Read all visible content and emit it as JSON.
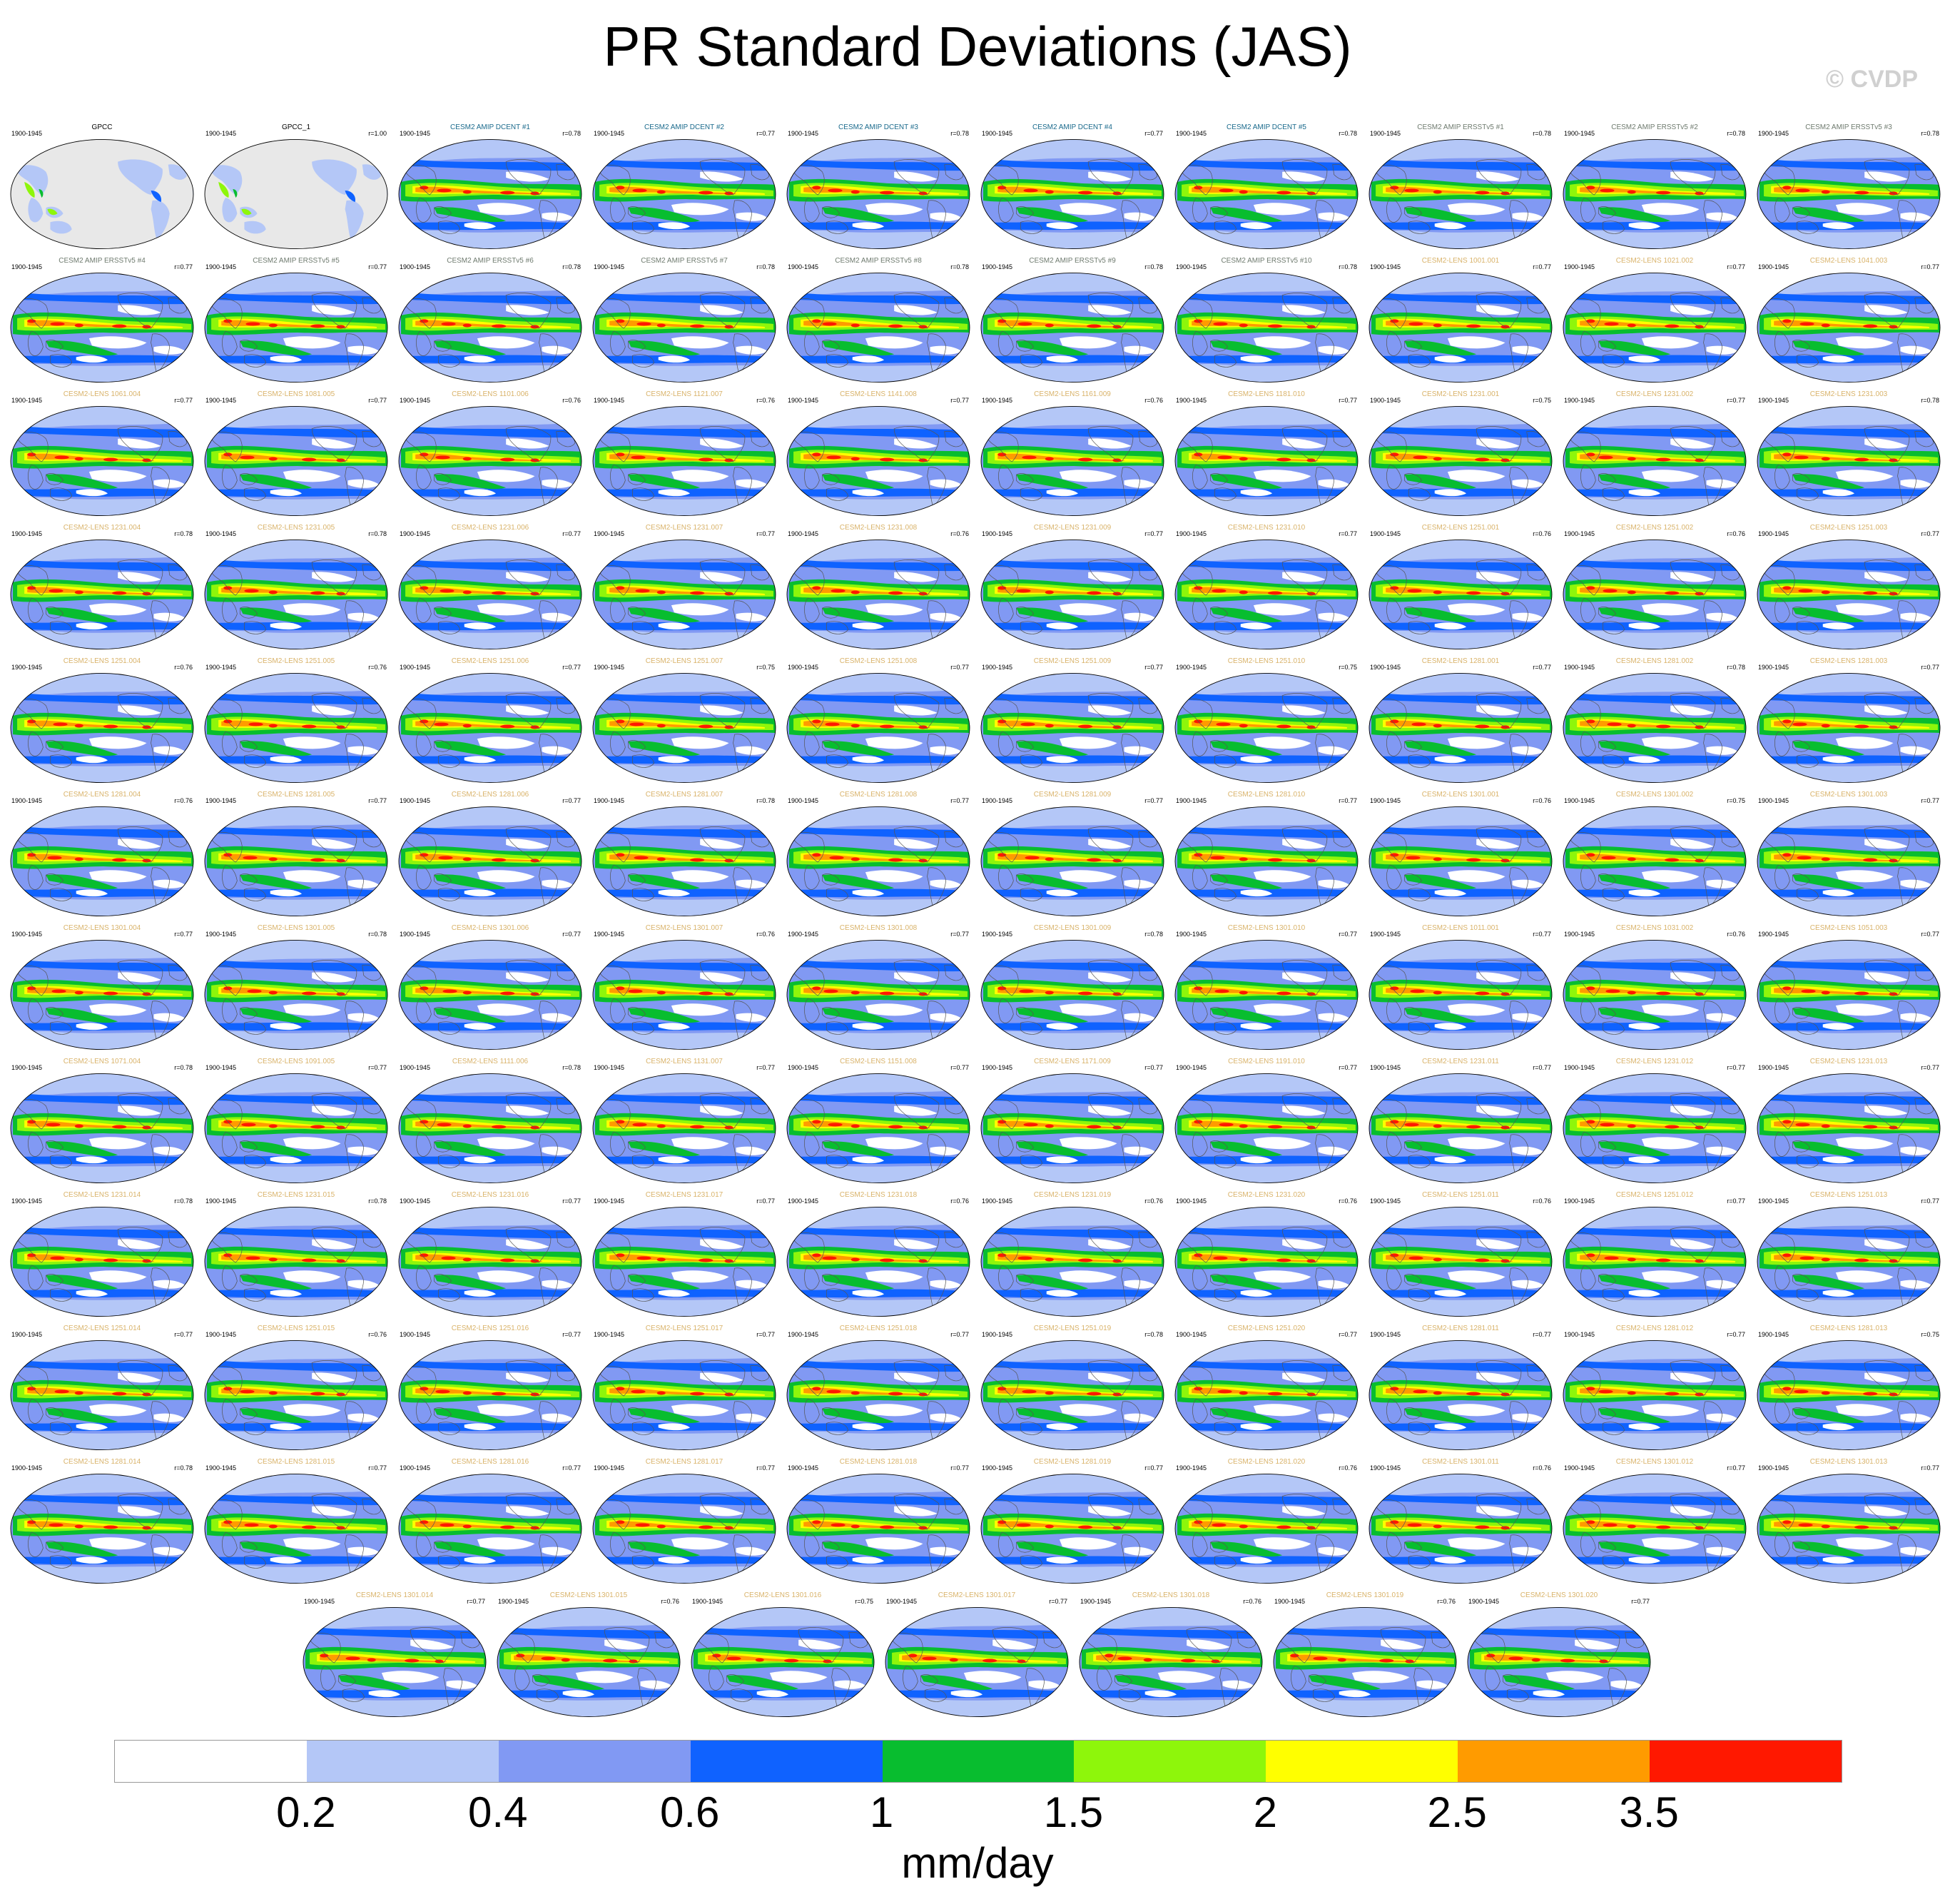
{
  "title": "PR Standard Deviations (JAS)",
  "copyright": "© CVDP",
  "period": "1900-1945",
  "colors": {
    "obs_title": "#000000",
    "amip_dcent_title": "#1a6a8c",
    "amip_ersst_title": "#6e7a6e",
    "lens_title": "#d9b36a",
    "land": "#e8e8e8",
    "coast": "#555555"
  },
  "panels": [
    {
      "title": "GPCC",
      "r": "",
      "kind": "obs"
    },
    {
      "title": "GPCC_1",
      "r": "r=1.00",
      "kind": "obs"
    },
    {
      "title": "CESM2 AMIP DCENT #1",
      "r": "r=0.78",
      "kind": "dcent"
    },
    {
      "title": "CESM2 AMIP DCENT #2",
      "r": "r=0.77",
      "kind": "dcent"
    },
    {
      "title": "CESM2 AMIP DCENT #3",
      "r": "r=0.78",
      "kind": "dcent"
    },
    {
      "title": "CESM2 AMIP DCENT #4",
      "r": "r=0.77",
      "kind": "dcent"
    },
    {
      "title": "CESM2 AMIP DCENT #5",
      "r": "r=0.78",
      "kind": "dcent"
    },
    {
      "title": "CESM2 AMIP ERSSTv5 #1",
      "r": "r=0.78",
      "kind": "ersst"
    },
    {
      "title": "CESM2 AMIP ERSSTv5 #2",
      "r": "r=0.78",
      "kind": "ersst"
    },
    {
      "title": "CESM2 AMIP ERSSTv5 #3",
      "r": "r=0.78",
      "kind": "ersst"
    },
    {
      "title": "CESM2 AMIP ERSSTv5 #4",
      "r": "r=0.77",
      "kind": "ersst"
    },
    {
      "title": "CESM2 AMIP ERSSTv5 #5",
      "r": "r=0.77",
      "kind": "ersst"
    },
    {
      "title": "CESM2 AMIP ERSSTv5 #6",
      "r": "r=0.78",
      "kind": "ersst"
    },
    {
      "title": "CESM2 AMIP ERSSTv5 #7",
      "r": "r=0.78",
      "kind": "ersst"
    },
    {
      "title": "CESM2 AMIP ERSSTv5 #8",
      "r": "r=0.78",
      "kind": "ersst"
    },
    {
      "title": "CESM2 AMIP ERSSTv5 #9",
      "r": "r=0.78",
      "kind": "ersst"
    },
    {
      "title": "CESM2 AMIP ERSSTv5 #10",
      "r": "r=0.78",
      "kind": "ersst"
    },
    {
      "title": "CESM2-LENS 1001.001",
      "r": "r=0.77",
      "kind": "lens"
    },
    {
      "title": "CESM2-LENS 1021.002",
      "r": "r=0.77",
      "kind": "lens"
    },
    {
      "title": "CESM2-LENS 1041.003",
      "r": "r=0.77",
      "kind": "lens"
    },
    {
      "title": "CESM2-LENS 1061.004",
      "r": "r=0.77",
      "kind": "lens"
    },
    {
      "title": "CESM2-LENS 1081.005",
      "r": "r=0.77",
      "kind": "lens"
    },
    {
      "title": "CESM2-LENS 1101.006",
      "r": "r=0.76",
      "kind": "lens"
    },
    {
      "title": "CESM2-LENS 1121.007",
      "r": "r=0.76",
      "kind": "lens"
    },
    {
      "title": "CESM2-LENS 1141.008",
      "r": "r=0.77",
      "kind": "lens"
    },
    {
      "title": "CESM2-LENS 1161.009",
      "r": "r=0.76",
      "kind": "lens"
    },
    {
      "title": "CESM2-LENS 1181.010",
      "r": "r=0.77",
      "kind": "lens"
    },
    {
      "title": "CESM2-LENS 1231.001",
      "r": "r=0.75",
      "kind": "lens"
    },
    {
      "title": "CESM2-LENS 1231.002",
      "r": "r=0.77",
      "kind": "lens"
    },
    {
      "title": "CESM2-LENS 1231.003",
      "r": "r=0.78",
      "kind": "lens"
    },
    {
      "title": "CESM2-LENS 1231.004",
      "r": "r=0.78",
      "kind": "lens"
    },
    {
      "title": "CESM2-LENS 1231.005",
      "r": "r=0.78",
      "kind": "lens"
    },
    {
      "title": "CESM2-LENS 1231.006",
      "r": "r=0.77",
      "kind": "lens"
    },
    {
      "title": "CESM2-LENS 1231.007",
      "r": "r=0.77",
      "kind": "lens"
    },
    {
      "title": "CESM2-LENS 1231.008",
      "r": "r=0.76",
      "kind": "lens"
    },
    {
      "title": "CESM2-LENS 1231.009",
      "r": "r=0.77",
      "kind": "lens"
    },
    {
      "title": "CESM2-LENS 1231.010",
      "r": "r=0.77",
      "kind": "lens"
    },
    {
      "title": "CESM2-LENS 1251.001",
      "r": "r=0.76",
      "kind": "lens"
    },
    {
      "title": "CESM2-LENS 1251.002",
      "r": "r=0.76",
      "kind": "lens"
    },
    {
      "title": "CESM2-LENS 1251.003",
      "r": "r=0.77",
      "kind": "lens"
    },
    {
      "title": "CESM2-LENS 1251.004",
      "r": "r=0.76",
      "kind": "lens"
    },
    {
      "title": "CESM2-LENS 1251.005",
      "r": "r=0.76",
      "kind": "lens"
    },
    {
      "title": "CESM2-LENS 1251.006",
      "r": "r=0.77",
      "kind": "lens"
    },
    {
      "title": "CESM2-LENS 1251.007",
      "r": "r=0.75",
      "kind": "lens"
    },
    {
      "title": "CESM2-LENS 1251.008",
      "r": "r=0.77",
      "kind": "lens"
    },
    {
      "title": "CESM2-LENS 1251.009",
      "r": "r=0.77",
      "kind": "lens"
    },
    {
      "title": "CESM2-LENS 1251.010",
      "r": "r=0.75",
      "kind": "lens"
    },
    {
      "title": "CESM2-LENS 1281.001",
      "r": "r=0.77",
      "kind": "lens"
    },
    {
      "title": "CESM2-LENS 1281.002",
      "r": "r=0.78",
      "kind": "lens"
    },
    {
      "title": "CESM2-LENS 1281.003",
      "r": "r=0.77",
      "kind": "lens"
    },
    {
      "title": "CESM2-LENS 1281.004",
      "r": "r=0.76",
      "kind": "lens"
    },
    {
      "title": "CESM2-LENS 1281.005",
      "r": "r=0.77",
      "kind": "lens"
    },
    {
      "title": "CESM2-LENS 1281.006",
      "r": "r=0.77",
      "kind": "lens"
    },
    {
      "title": "CESM2-LENS 1281.007",
      "r": "r=0.78",
      "kind": "lens"
    },
    {
      "title": "CESM2-LENS 1281.008",
      "r": "r=0.77",
      "kind": "lens"
    },
    {
      "title": "CESM2-LENS 1281.009",
      "r": "r=0.77",
      "kind": "lens"
    },
    {
      "title": "CESM2-LENS 1281.010",
      "r": "r=0.77",
      "kind": "lens"
    },
    {
      "title": "CESM2-LENS 1301.001",
      "r": "r=0.76",
      "kind": "lens"
    },
    {
      "title": "CESM2-LENS 1301.002",
      "r": "r=0.75",
      "kind": "lens"
    },
    {
      "title": "CESM2-LENS 1301.003",
      "r": "r=0.77",
      "kind": "lens"
    },
    {
      "title": "CESM2-LENS 1301.004",
      "r": "r=0.77",
      "kind": "lens"
    },
    {
      "title": "CESM2-LENS 1301.005",
      "r": "r=0.78",
      "kind": "lens"
    },
    {
      "title": "CESM2-LENS 1301.006",
      "r": "r=0.77",
      "kind": "lens"
    },
    {
      "title": "CESM2-LENS 1301.007",
      "r": "r=0.76",
      "kind": "lens"
    },
    {
      "title": "CESM2-LENS 1301.008",
      "r": "r=0.77",
      "kind": "lens"
    },
    {
      "title": "CESM2-LENS 1301.009",
      "r": "r=0.78",
      "kind": "lens"
    },
    {
      "title": "CESM2-LENS 1301.010",
      "r": "r=0.77",
      "kind": "lens"
    },
    {
      "title": "CESM2-LENS 1011.001",
      "r": "r=0.77",
      "kind": "lens"
    },
    {
      "title": "CESM2-LENS 1031.002",
      "r": "r=0.76",
      "kind": "lens"
    },
    {
      "title": "CESM2-LENS 1051.003",
      "r": "r=0.77",
      "kind": "lens"
    },
    {
      "title": "CESM2-LENS 1071.004",
      "r": "r=0.78",
      "kind": "lens"
    },
    {
      "title": "CESM2-LENS 1091.005",
      "r": "r=0.77",
      "kind": "lens"
    },
    {
      "title": "CESM2-LENS 1111.006",
      "r": "r=0.78",
      "kind": "lens"
    },
    {
      "title": "CESM2-LENS 1131.007",
      "r": "r=0.77",
      "kind": "lens"
    },
    {
      "title": "CESM2-LENS 1151.008",
      "r": "r=0.77",
      "kind": "lens"
    },
    {
      "title": "CESM2-LENS 1171.009",
      "r": "r=0.77",
      "kind": "lens"
    },
    {
      "title": "CESM2-LENS 1191.010",
      "r": "r=0.77",
      "kind": "lens"
    },
    {
      "title": "CESM2-LENS 1231.011",
      "r": "r=0.77",
      "kind": "lens"
    },
    {
      "title": "CESM2-LENS 1231.012",
      "r": "r=0.77",
      "kind": "lens"
    },
    {
      "title": "CESM2-LENS 1231.013",
      "r": "r=0.77",
      "kind": "lens"
    },
    {
      "title": "CESM2-LENS 1231.014",
      "r": "r=0.78",
      "kind": "lens"
    },
    {
      "title": "CESM2-LENS 1231.015",
      "r": "r=0.78",
      "kind": "lens"
    },
    {
      "title": "CESM2-LENS 1231.016",
      "r": "r=0.77",
      "kind": "lens"
    },
    {
      "title": "CESM2-LENS 1231.017",
      "r": "r=0.77",
      "kind": "lens"
    },
    {
      "title": "CESM2-LENS 1231.018",
      "r": "r=0.76",
      "kind": "lens"
    },
    {
      "title": "CESM2-LENS 1231.019",
      "r": "r=0.76",
      "kind": "lens"
    },
    {
      "title": "CESM2-LENS 1231.020",
      "r": "r=0.76",
      "kind": "lens"
    },
    {
      "title": "CESM2-LENS 1251.011",
      "r": "r=0.76",
      "kind": "lens"
    },
    {
      "title": "CESM2-LENS 1251.012",
      "r": "r=0.77",
      "kind": "lens"
    },
    {
      "title": "CESM2-LENS 1251.013",
      "r": "r=0.77",
      "kind": "lens"
    },
    {
      "title": "CESM2-LENS 1251.014",
      "r": "r=0.77",
      "kind": "lens"
    },
    {
      "title": "CESM2-LENS 1251.015",
      "r": "r=0.76",
      "kind": "lens"
    },
    {
      "title": "CESM2-LENS 1251.016",
      "r": "r=0.77",
      "kind": "lens"
    },
    {
      "title": "CESM2-LENS 1251.017",
      "r": "r=0.77",
      "kind": "lens"
    },
    {
      "title": "CESM2-LENS 1251.018",
      "r": "r=0.77",
      "kind": "lens"
    },
    {
      "title": "CESM2-LENS 1251.019",
      "r": "r=0.78",
      "kind": "lens"
    },
    {
      "title": "CESM2-LENS 1251.020",
      "r": "r=0.77",
      "kind": "lens"
    },
    {
      "title": "CESM2-LENS 1281.011",
      "r": "r=0.77",
      "kind": "lens"
    },
    {
      "title": "CESM2-LENS 1281.012",
      "r": "r=0.77",
      "kind": "lens"
    },
    {
      "title": "CESM2-LENS 1281.013",
      "r": "r=0.75",
      "kind": "lens"
    },
    {
      "title": "CESM2-LENS 1281.014",
      "r": "r=0.78",
      "kind": "lens"
    },
    {
      "title": "CESM2-LENS 1281.015",
      "r": "r=0.77",
      "kind": "lens"
    },
    {
      "title": "CESM2-LENS 1281.016",
      "r": "r=0.77",
      "kind": "lens"
    },
    {
      "title": "CESM2-LENS 1281.017",
      "r": "r=0.77",
      "kind": "lens"
    },
    {
      "title": "CESM2-LENS 1281.018",
      "r": "r=0.77",
      "kind": "lens"
    },
    {
      "title": "CESM2-LENS 1281.019",
      "r": "r=0.77",
      "kind": "lens"
    },
    {
      "title": "CESM2-LENS 1281.020",
      "r": "r=0.76",
      "kind": "lens"
    },
    {
      "title": "CESM2-LENS 1301.011",
      "r": "r=0.76",
      "kind": "lens"
    },
    {
      "title": "CESM2-LENS 1301.012",
      "r": "r=0.77",
      "kind": "lens"
    },
    {
      "title": "CESM2-LENS 1301.013",
      "r": "r=0.77",
      "kind": "lens"
    },
    {
      "title": "CESM2-LENS 1301.014",
      "r": "r=0.77",
      "kind": "lens"
    },
    {
      "title": "CESM2-LENS 1301.015",
      "r": "r=0.76",
      "kind": "lens"
    },
    {
      "title": "CESM2-LENS 1301.016",
      "r": "r=0.75",
      "kind": "lens"
    },
    {
      "title": "CESM2-LENS 1301.017",
      "r": "r=0.77",
      "kind": "lens"
    },
    {
      "title": "CESM2-LENS 1301.018",
      "r": "r=0.76",
      "kind": "lens"
    },
    {
      "title": "CESM2-LENS 1301.019",
      "r": "r=0.76",
      "kind": "lens"
    },
    {
      "title": "CESM2-LENS 1301.020",
      "r": "r=0.77",
      "kind": "lens"
    }
  ],
  "colorbar": {
    "units": "mm/day",
    "colors": [
      "#ffffff",
      "#b4c7f7",
      "#8199f3",
      "#0f62ff",
      "#08bd2f",
      "#8ef60b",
      "#ffff00",
      "#ff9b00",
      "#ff1800"
    ],
    "labels": [
      "0.2",
      "0.4",
      "0.6",
      "1",
      "1.5",
      "2",
      "2.5",
      "3.5"
    ]
  }
}
